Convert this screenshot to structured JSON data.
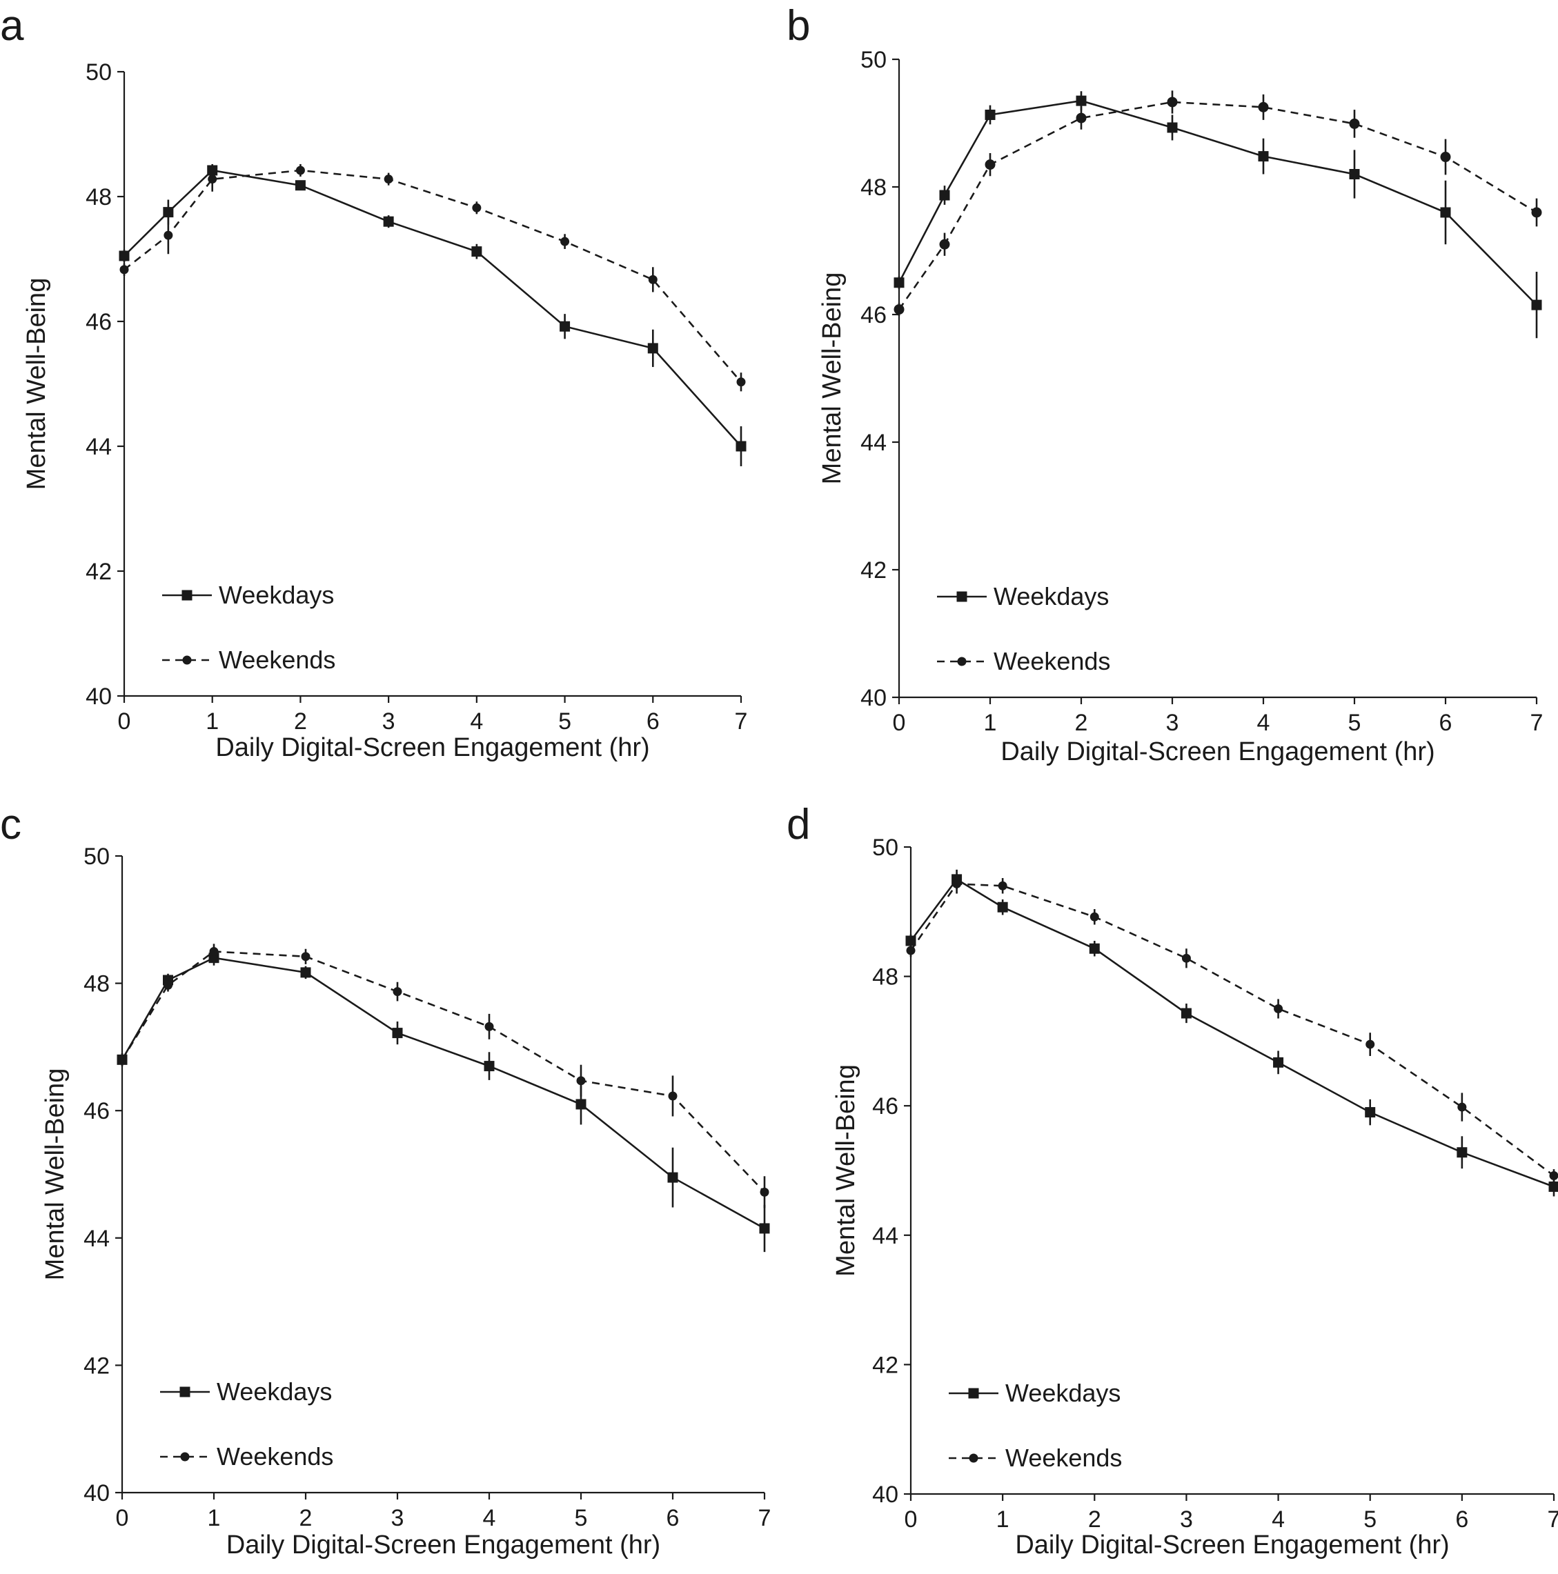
{
  "colors": {
    "ink": "#1a1a1a",
    "background": "#ffffff"
  },
  "chart_data": [
    {
      "panel": "a",
      "type": "line",
      "xlabel": "Daily Digital-Screen Engagement (hr)",
      "ylabel": "Mental Well-Being",
      "ylim": [
        40,
        50
      ],
      "xlim": [
        0,
        7
      ],
      "x_ticks": [
        0,
        1,
        2,
        3,
        4,
        5,
        6,
        7
      ],
      "y_ticks": [
        40,
        42,
        44,
        46,
        48,
        50
      ],
      "legend_position": "bottom-left",
      "series": [
        {
          "name": "Weekdays",
          "style": "solid",
          "marker": "square",
          "x": [
            0,
            0.5,
            1,
            2,
            3,
            4,
            5,
            6,
            7
          ],
          "y": [
            47.05,
            47.75,
            48.42,
            48.18,
            47.6,
            47.12,
            45.92,
            45.57,
            44.0
          ],
          "error": [
            0.1,
            0.2,
            0.1,
            0.08,
            0.1,
            0.12,
            0.2,
            0.3,
            0.32
          ]
        },
        {
          "name": "Weekends",
          "style": "dashed",
          "marker": "circle",
          "x": [
            0,
            0.5,
            1,
            2,
            3,
            4,
            5,
            6,
            7
          ],
          "y": [
            46.83,
            47.38,
            48.28,
            48.42,
            48.28,
            47.82,
            47.28,
            46.67,
            45.03
          ],
          "error": [
            0.1,
            0.3,
            0.2,
            0.1,
            0.1,
            0.1,
            0.12,
            0.2,
            0.15
          ]
        }
      ]
    },
    {
      "panel": "b",
      "type": "line",
      "xlabel": "Daily Digital-Screen Engagement (hr)",
      "ylabel": "Mental Well-Being",
      "ylim": [
        40,
        50
      ],
      "xlim": [
        0,
        7
      ],
      "x_ticks": [
        0,
        1,
        2,
        3,
        4,
        5,
        6,
        7
      ],
      "y_ticks": [
        40,
        42,
        44,
        46,
        48,
        50
      ],
      "legend_position": "bottom-left",
      "series": [
        {
          "name": "Weekdays",
          "style": "solid",
          "marker": "square",
          "x": [
            0,
            0.5,
            1,
            2,
            3,
            4,
            5,
            6,
            7
          ],
          "y": [
            46.5,
            47.87,
            49.13,
            49.35,
            48.93,
            48.48,
            48.2,
            47.6,
            46.15
          ],
          "error": [
            0.1,
            0.15,
            0.15,
            0.15,
            0.2,
            0.28,
            0.38,
            0.5,
            0.52
          ]
        },
        {
          "name": "Weekends",
          "style": "dashed",
          "marker": "circle",
          "x": [
            0,
            0.5,
            1,
            2,
            3,
            4,
            5,
            6,
            7
          ],
          "y": [
            46.08,
            47.1,
            48.35,
            49.08,
            49.33,
            49.25,
            48.99,
            48.47,
            47.6
          ],
          "error": [
            0.1,
            0.18,
            0.18,
            0.18,
            0.18,
            0.2,
            0.22,
            0.28,
            0.22
          ]
        }
      ]
    },
    {
      "panel": "c",
      "type": "line",
      "xlabel": "Daily Digital-Screen Engagement (hr)",
      "ylabel": "Mental Well-Being",
      "ylim": [
        40,
        50
      ],
      "xlim": [
        0,
        7
      ],
      "x_ticks": [
        0,
        1,
        2,
        3,
        4,
        5,
        6,
        7
      ],
      "y_ticks": [
        40,
        42,
        44,
        46,
        48,
        50
      ],
      "legend_position": "bottom-left",
      "series": [
        {
          "name": "Weekdays",
          "style": "solid",
          "marker": "square",
          "x": [
            0,
            0.5,
            1,
            2,
            3,
            4,
            5,
            6,
            7
          ],
          "y": [
            46.8,
            48.05,
            48.4,
            48.17,
            47.22,
            46.7,
            46.1,
            44.95,
            44.15
          ],
          "error": [
            0.1,
            0.1,
            0.12,
            0.1,
            0.18,
            0.22,
            0.32,
            0.47,
            0.37
          ]
        },
        {
          "name": "Weekends",
          "style": "dashed",
          "marker": "circle",
          "x": [
            0,
            0.5,
            1,
            2,
            3,
            4,
            5,
            6,
            7
          ],
          "y": [
            46.8,
            47.97,
            48.5,
            48.42,
            47.87,
            47.32,
            46.47,
            46.23,
            44.72
          ],
          "error": [
            0.1,
            0.1,
            0.12,
            0.12,
            0.15,
            0.2,
            0.25,
            0.32,
            0.25
          ]
        }
      ]
    },
    {
      "panel": "d",
      "type": "line",
      "xlabel": "Daily Digital-Screen Engagement (hr)",
      "ylabel": "Mental Well-Being",
      "ylim": [
        40,
        50
      ],
      "xlim": [
        0,
        7
      ],
      "x_ticks": [
        0,
        1,
        2,
        3,
        4,
        5,
        6,
        7
      ],
      "y_ticks": [
        40,
        42,
        44,
        46,
        48,
        50
      ],
      "legend_position": "bottom-left",
      "series": [
        {
          "name": "Weekdays",
          "style": "solid",
          "marker": "square",
          "x": [
            0,
            0.5,
            1,
            2,
            3,
            4,
            5,
            6,
            7
          ],
          "y": [
            48.55,
            49.5,
            49.07,
            48.43,
            47.43,
            46.67,
            45.9,
            45.28,
            44.75
          ],
          "error": [
            0.1,
            0.15,
            0.12,
            0.12,
            0.15,
            0.18,
            0.2,
            0.25,
            0.15
          ]
        },
        {
          "name": "Weekends",
          "style": "dashed",
          "marker": "circle",
          "x": [
            0,
            0.5,
            1,
            2,
            3,
            4,
            5,
            6,
            7
          ],
          "y": [
            48.4,
            49.43,
            49.4,
            48.92,
            48.28,
            47.5,
            46.95,
            45.98,
            44.92
          ],
          "error": [
            0.1,
            0.15,
            0.12,
            0.12,
            0.15,
            0.15,
            0.18,
            0.22,
            0.1
          ]
        }
      ]
    }
  ]
}
